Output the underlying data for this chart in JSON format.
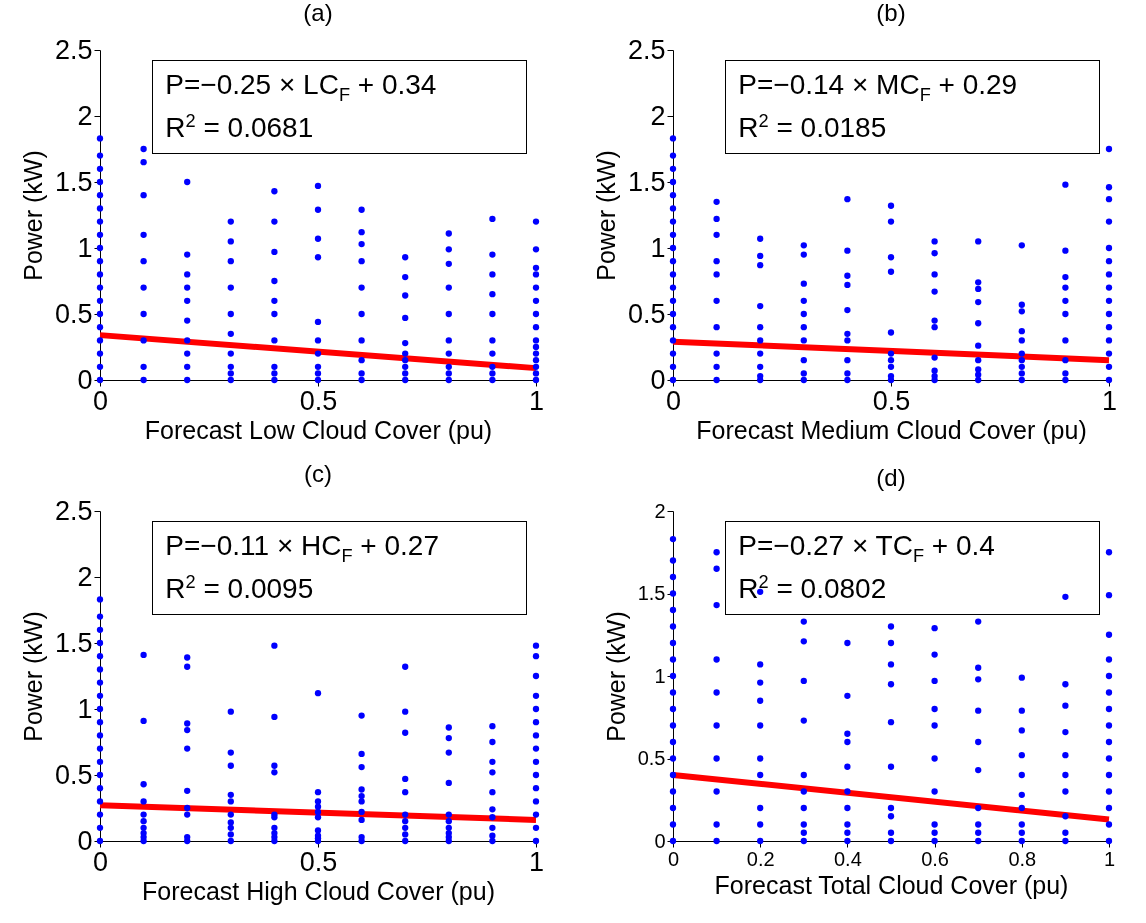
{
  "chart_data": [
    {
      "type": "scatter",
      "title": "(a)",
      "xlabel": "Forecast Low Cloud Cover (pu)",
      "ylabel": "Power (kW)",
      "xlim": [
        0,
        1
      ],
      "xticks": [
        0,
        0.5,
        1
      ],
      "ylim": [
        0,
        2.5
      ],
      "yticks": [
        0,
        0.5,
        1,
        1.5,
        2,
        2.5
      ],
      "annotations": [
        "P=−0.25 × LC$_{F}$ + 0.34",
        "R$^{2}$ = 0.0681"
      ],
      "series": [
        {
          "color": "#0000ff",
          "marker": "circle",
          "x": [
            0,
            0,
            0,
            0,
            0,
            0,
            0,
            0,
            0,
            0,
            0,
            0,
            0,
            0,
            0,
            0,
            0,
            0,
            0,
            0.1,
            0.1,
            0.1,
            0.1,
            0.1,
            0.1,
            0.1,
            0.1,
            0.1,
            0.1,
            0.2,
            0.2,
            0.2,
            0.2,
            0.2,
            0.2,
            0.2,
            0.2,
            0.2,
            0.2,
            0.3,
            0.3,
            0.3,
            0.3,
            0.3,
            0.3,
            0.3,
            0.3,
            0.3,
            0.3,
            0.4,
            0.4,
            0.4,
            0.4,
            0.4,
            0.4,
            0.4,
            0.4,
            0.4,
            0.4,
            0.5,
            0.5,
            0.5,
            0.5,
            0.5,
            0.5,
            0.5,
            0.5,
            0.5,
            0.5,
            0.6,
            0.6,
            0.6,
            0.6,
            0.6,
            0.6,
            0.6,
            0.6,
            0.6,
            0.6,
            0.7,
            0.7,
            0.7,
            0.7,
            0.7,
            0.7,
            0.7,
            0.7,
            0.7,
            0.7,
            0.8,
            0.8,
            0.8,
            0.8,
            0.8,
            0.8,
            0.8,
            0.8,
            0.8,
            0.8,
            0.9,
            0.9,
            0.9,
            0.9,
            0.9,
            0.9,
            0.9,
            0.9,
            0.9,
            0.9,
            1,
            1,
            1,
            1,
            1,
            1,
            1,
            1,
            1,
            1,
            1,
            1,
            1,
            1,
            1
          ],
          "values": [
            0,
            0.1,
            0.2,
            0.3,
            0.4,
            0.5,
            0.6,
            0.7,
            0.8,
            0.9,
            1,
            1.1,
            1.2,
            1.3,
            1.4,
            1.5,
            1.6,
            1.7,
            1.83,
            0,
            0.1,
            0.3,
            0.5,
            0.7,
            0.9,
            1.1,
            1.4,
            1.65,
            1.75,
            0,
            0.1,
            0.2,
            0.3,
            0.45,
            0.6,
            0.7,
            0.8,
            0.95,
            1.5,
            0,
            0.05,
            0.1,
            0.2,
            0.35,
            0.5,
            0.7,
            0.9,
            1.05,
            1.2,
            0,
            0.05,
            0.1,
            0.3,
            0.5,
            0.6,
            0.75,
            0.97,
            1.2,
            1.43,
            0,
            0.05,
            0.1,
            0.2,
            0.3,
            0.44,
            0.93,
            1.07,
            1.29,
            1.47,
            0,
            0.05,
            0.15,
            0.3,
            0.5,
            0.7,
            0.9,
            1.03,
            1.12,
            1.29,
            0,
            0.05,
            0.1,
            0.15,
            0.2,
            0.28,
            0.47,
            0.64,
            0.78,
            0.93,
            0,
            0.05,
            0.1,
            0.2,
            0.3,
            0.5,
            0.7,
            0.88,
            0.99,
            1.11,
            0,
            0.05,
            0.1,
            0.2,
            0.3,
            0.5,
            0.65,
            0.8,
            0.95,
            1.22,
            0,
            0.05,
            0.1,
            0.15,
            0.2,
            0.25,
            0.3,
            0.4,
            0.5,
            0.6,
            0.7,
            0.8,
            0.85,
            0.99,
            1.2
          ]
        },
        {
          "type": "line",
          "color": "#ff0000",
          "x": [
            0,
            1
          ],
          "values": [
            0.34,
            0.09
          ]
        }
      ]
    },
    {
      "type": "scatter",
      "title": "(b)",
      "xlabel": "Forecast Medium Cloud Cover (pu)",
      "ylabel": "Power (kW)",
      "xlim": [
        0,
        1
      ],
      "xticks": [
        0,
        0.5,
        1
      ],
      "ylim": [
        0,
        2.5
      ],
      "yticks": [
        0,
        0.5,
        1,
        1.5,
        2,
        2.5
      ],
      "annotations": [
        "P=−0.14 × MC$_{F}$ + 0.29",
        "R$^{2}$ = 0.0185"
      ],
      "series": [
        {
          "color": "#0000ff",
          "marker": "circle",
          "x": [
            0,
            0,
            0,
            0,
            0,
            0,
            0,
            0,
            0,
            0,
            0,
            0,
            0,
            0,
            0,
            0,
            0,
            0,
            0,
            0.1,
            0.1,
            0.1,
            0.1,
            0.1,
            0.1,
            0.1,
            0.1,
            0.1,
            0.1,
            0.2,
            0.2,
            0.2,
            0.2,
            0.2,
            0.2,
            0.2,
            0.2,
            0.2,
            0.2,
            0.3,
            0.3,
            0.3,
            0.3,
            0.3,
            0.3,
            0.3,
            0.3,
            0.3,
            0.3,
            0.4,
            0.4,
            0.4,
            0.4,
            0.4,
            0.4,
            0.4,
            0.4,
            0.4,
            0.4,
            0.5,
            0.5,
            0.5,
            0.5,
            0.5,
            0.5,
            0.5,
            0.5,
            0.5,
            0.5,
            0.6,
            0.6,
            0.6,
            0.6,
            0.6,
            0.6,
            0.6,
            0.6,
            0.6,
            0.6,
            0.7,
            0.7,
            0.7,
            0.7,
            0.7,
            0.7,
            0.7,
            0.7,
            0.7,
            0.7,
            0.8,
            0.8,
            0.8,
            0.8,
            0.8,
            0.8,
            0.8,
            0.8,
            0.8,
            0.8,
            0.9,
            0.9,
            0.9,
            0.9,
            0.9,
            0.9,
            0.9,
            0.9,
            0.9,
            0.9,
            1,
            1,
            1,
            1,
            1,
            1,
            1,
            1,
            1,
            1,
            1,
            1,
            1,
            1,
            1
          ],
          "values": [
            0,
            0.1,
            0.2,
            0.3,
            0.4,
            0.5,
            0.6,
            0.7,
            0.8,
            0.9,
            1,
            1.1,
            1.2,
            1.3,
            1.4,
            1.5,
            1.6,
            1.7,
            1.83,
            0,
            0.1,
            0.2,
            0.4,
            0.6,
            0.8,
            0.9,
            1.1,
            1.22,
            1.35,
            0,
            0.03,
            0.1,
            0.2,
            0.3,
            0.4,
            0.56,
            0.87,
            0.94,
            1.07,
            0,
            0.05,
            0.15,
            0.3,
            0.4,
            0.5,
            0.6,
            0.73,
            0.95,
            1.02,
            0,
            0.05,
            0.15,
            0.3,
            0.35,
            0.53,
            0.72,
            0.79,
            0.98,
            1.37,
            0,
            0.03,
            0.1,
            0.15,
            0.2,
            0.36,
            0.82,
            0.93,
            1.2,
            1.32,
            0,
            0.03,
            0.07,
            0.17,
            0.4,
            0.45,
            0.67,
            0.8,
            0.96,
            1.05,
            0,
            0.04,
            0.08,
            0.15,
            0.26,
            0.43,
            0.59,
            0.69,
            0.74,
            1.05,
            0,
            0.05,
            0.1,
            0.15,
            0.2,
            0.3,
            0.37,
            0.52,
            0.57,
            1.02,
            0,
            0.05,
            0.15,
            0.3,
            0.5,
            0.6,
            0.7,
            0.78,
            0.98,
            1.48,
            0,
            0.1,
            0.2,
            0.3,
            0.4,
            0.5,
            0.6,
            0.7,
            0.8,
            0.9,
            1,
            1.2,
            1.37,
            1.46,
            1.75
          ]
        },
        {
          "type": "line",
          "color": "#ff0000",
          "x": [
            0,
            1
          ],
          "values": [
            0.29,
            0.15
          ]
        }
      ]
    },
    {
      "type": "scatter",
      "title": "(c)",
      "xlabel": "Forecast High Cloud Cover (pu)",
      "ylabel": "Power (kW)",
      "xlim": [
        0,
        1
      ],
      "xticks": [
        0,
        0.5,
        1
      ],
      "ylim": [
        0,
        2.5
      ],
      "yticks": [
        0,
        0.5,
        1,
        1.5,
        2,
        2.5
      ],
      "annotations": [
        "P=−0.11 × HC$_{F}$ + 0.27",
        "R$^{2}$ = 0.0095"
      ],
      "series": [
        {
          "color": "#0000ff",
          "marker": "circle",
          "x": [
            0,
            0,
            0,
            0,
            0,
            0,
            0,
            0,
            0,
            0,
            0,
            0,
            0,
            0,
            0,
            0,
            0,
            0,
            0,
            0.1,
            0.1,
            0.1,
            0.1,
            0.1,
            0.1,
            0.1,
            0.1,
            0.1,
            0.1,
            0.2,
            0.2,
            0.2,
            0.2,
            0.2,
            0.2,
            0.2,
            0.2,
            0.2,
            0.2,
            0.3,
            0.3,
            0.3,
            0.3,
            0.3,
            0.3,
            0.3,
            0.3,
            0.3,
            0.3,
            0.4,
            0.4,
            0.4,
            0.4,
            0.4,
            0.4,
            0.4,
            0.4,
            0.4,
            0.4,
            0.5,
            0.5,
            0.5,
            0.5,
            0.5,
            0.5,
            0.5,
            0.5,
            0.5,
            0.5,
            0.6,
            0.6,
            0.6,
            0.6,
            0.6,
            0.6,
            0.6,
            0.6,
            0.6,
            0.6,
            0.7,
            0.7,
            0.7,
            0.7,
            0.7,
            0.7,
            0.7,
            0.7,
            0.7,
            0.7,
            0.8,
            0.8,
            0.8,
            0.8,
            0.8,
            0.8,
            0.8,
            0.8,
            0.8,
            0.8,
            0.9,
            0.9,
            0.9,
            0.9,
            0.9,
            0.9,
            0.9,
            0.9,
            0.9,
            0.9,
            1,
            1,
            1,
            1,
            1,
            1,
            1,
            1,
            1,
            1,
            1,
            1,
            1,
            1,
            1
          ],
          "values": [
            0,
            0.1,
            0.2,
            0.3,
            0.4,
            0.5,
            0.6,
            0.7,
            0.8,
            0.9,
            1,
            1.1,
            1.2,
            1.3,
            1.4,
            1.5,
            1.6,
            1.7,
            1.83,
            0,
            0.03,
            0.06,
            0.1,
            0.15,
            0.2,
            0.3,
            0.43,
            0.91,
            1.41,
            0,
            0.03,
            0.2,
            0.25,
            0.38,
            0.7,
            0.84,
            0.89,
            1.32,
            1.39,
            0,
            0.05,
            0.1,
            0.14,
            0.2,
            0.3,
            0.35,
            0.57,
            0.67,
            0.98,
            0,
            0.03,
            0.06,
            0.1,
            0.18,
            0.2,
            0.52,
            0.57,
            0.94,
            1.48,
            0,
            0.02,
            0.04,
            0.08,
            0.18,
            0.22,
            0.26,
            0.3,
            0.37,
            1.12,
            0,
            0.03,
            0.16,
            0.22,
            0.3,
            0.34,
            0.39,
            0.56,
            0.66,
            0.95,
            0,
            0.05,
            0.1,
            0.15,
            0.2,
            0.37,
            0.47,
            0.82,
            0.98,
            1.32,
            0,
            0.03,
            0.06,
            0.1,
            0.15,
            0.2,
            0.44,
            0.67,
            0.78,
            0.86,
            0,
            0.04,
            0.1,
            0.18,
            0.24,
            0.37,
            0.52,
            0.6,
            0.75,
            0.87,
            0,
            0.1,
            0.2,
            0.3,
            0.4,
            0.5,
            0.6,
            0.7,
            0.8,
            0.9,
            1,
            1.1,
            1.25,
            1.4,
            1.48
          ]
        },
        {
          "type": "line",
          "color": "#ff0000",
          "x": [
            0,
            1
          ],
          "values": [
            0.27,
            0.16
          ]
        }
      ]
    },
    {
      "type": "scatter",
      "title": "(d)",
      "xlabel": "Forecast Total Cloud Cover (pu)",
      "ylabel": "Power (kW)",
      "xlim": [
        0,
        1
      ],
      "xticks": [
        0,
        0.2,
        0.4,
        0.6,
        0.8,
        1
      ],
      "ylim": [
        0,
        2
      ],
      "yticks": [
        0,
        0.5,
        1,
        1.5,
        2
      ],
      "annotations": [
        "P=−0.27 × TC$_{F}$ + 0.4",
        "R$^{2}$ = 0.0802"
      ],
      "series": [
        {
          "color": "#0000ff",
          "marker": "circle",
          "x": [
            0,
            0,
            0,
            0,
            0,
            0,
            0,
            0,
            0,
            0,
            0,
            0,
            0,
            0,
            0,
            0,
            0,
            0,
            0,
            0.1,
            0.1,
            0.1,
            0.1,
            0.1,
            0.1,
            0.1,
            0.1,
            0.1,
            0.1,
            0.2,
            0.2,
            0.2,
            0.2,
            0.2,
            0.2,
            0.2,
            0.2,
            0.2,
            0.2,
            0.3,
            0.3,
            0.3,
            0.3,
            0.3,
            0.3,
            0.3,
            0.3,
            0.3,
            0.3,
            0.4,
            0.4,
            0.4,
            0.4,
            0.4,
            0.4,
            0.4,
            0.4,
            0.4,
            0.4,
            0.5,
            0.5,
            0.5,
            0.5,
            0.5,
            0.5,
            0.5,
            0.5,
            0.5,
            0.5,
            0.6,
            0.6,
            0.6,
            0.6,
            0.6,
            0.6,
            0.6,
            0.6,
            0.6,
            0.6,
            0.7,
            0.7,
            0.7,
            0.7,
            0.7,
            0.7,
            0.7,
            0.7,
            0.7,
            0.7,
            0.8,
            0.8,
            0.8,
            0.8,
            0.8,
            0.8,
            0.8,
            0.8,
            0.8,
            0.8,
            0.9,
            0.9,
            0.9,
            0.9,
            0.9,
            0.9,
            0.9,
            0.9,
            0.9,
            0.9,
            1,
            1,
            1,
            1,
            1,
            1,
            1,
            1,
            1,
            1,
            1,
            1,
            1,
            1,
            1
          ],
          "values": [
            0,
            0.1,
            0.2,
            0.3,
            0.4,
            0.5,
            0.6,
            0.7,
            0.8,
            0.9,
            1,
            1.1,
            1.2,
            1.3,
            1.4,
            1.5,
            1.6,
            1.7,
            1.83,
            0,
            0.1,
            0.3,
            0.5,
            0.7,
            0.9,
            1.1,
            1.43,
            1.65,
            1.75,
            0,
            0.1,
            0.2,
            0.4,
            0.5,
            0.7,
            0.85,
            0.96,
            1.07,
            1.51,
            0,
            0.05,
            0.1,
            0.2,
            0.3,
            0.4,
            0.73,
            0.97,
            1.21,
            1.33,
            0,
            0.05,
            0.1,
            0.2,
            0.3,
            0.45,
            0.6,
            0.65,
            0.88,
            1.2,
            0,
            0.05,
            0.15,
            0.2,
            0.45,
            0.72,
            0.95,
            1.07,
            1.2,
            1.3,
            0,
            0.05,
            0.1,
            0.3,
            0.5,
            0.7,
            0.8,
            0.97,
            1.13,
            1.29,
            0,
            0.05,
            0.1,
            0.2,
            0.43,
            0.6,
            0.79,
            0.98,
            1.05,
            1.33,
            0,
            0.05,
            0.1,
            0.2,
            0.28,
            0.4,
            0.52,
            0.67,
            0.79,
            0.99,
            0,
            0.05,
            0.15,
            0.3,
            0.4,
            0.52,
            0.66,
            0.82,
            0.95,
            1.48,
            0,
            0.1,
            0.2,
            0.3,
            0.4,
            0.5,
            0.6,
            0.7,
            0.8,
            0.9,
            1,
            1.1,
            1.25,
            1.49,
            1.75
          ]
        },
        {
          "type": "line",
          "color": "#ff0000",
          "x": [
            0,
            1
          ],
          "values": [
            0.4,
            0.13
          ]
        }
      ]
    }
  ]
}
